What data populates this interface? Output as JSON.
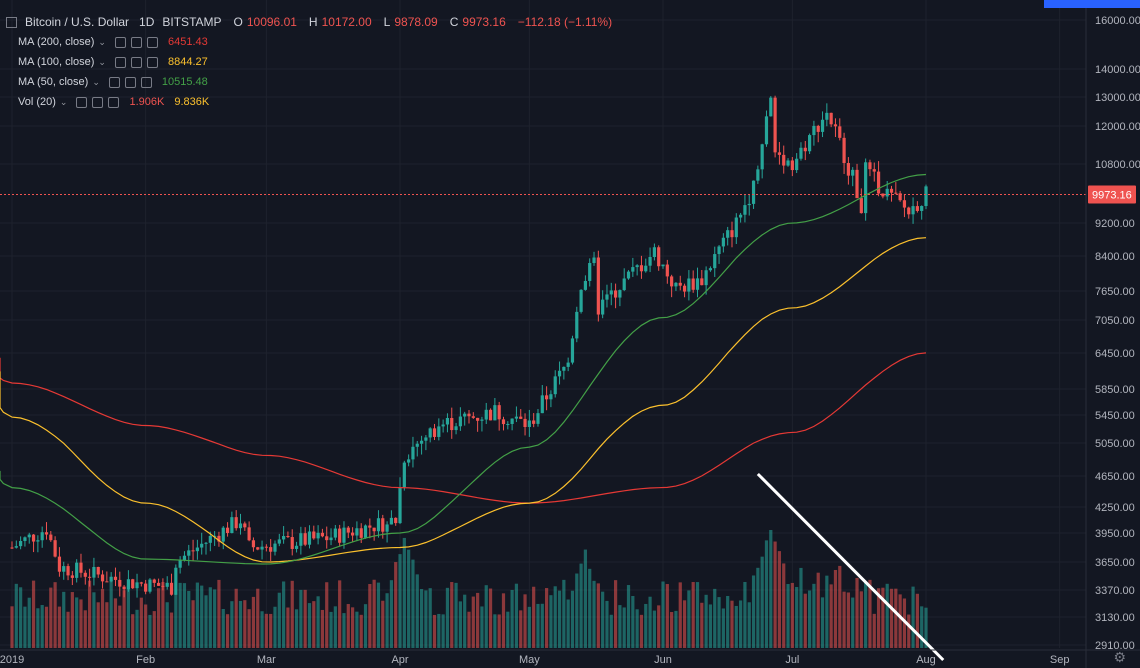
{
  "header": {
    "symbol": "Bitcoin / U.S. Dollar",
    "interval": "1D",
    "exchange": "BITSTAMP",
    "o_label": "O",
    "o": "10096.01",
    "h_label": "H",
    "h": "10172.00",
    "l_label": "L",
    "l": "9878.09",
    "c_label": "C",
    "c": "9973.16",
    "change": "−112.18 (−1.11%)"
  },
  "indicators": [
    {
      "label": "MA (200, close)",
      "value": "6451.43",
      "color": "#e53935"
    },
    {
      "label": "MA (100, close)",
      "value": "8844.27",
      "color": "#fbc02d"
    },
    {
      "label": "MA (50, close)",
      "value": "10515.48",
      "color": "#43a047"
    }
  ],
  "volume_indicator": {
    "label": "Vol (20)",
    "value1": "1.906K",
    "value2": "9.836K",
    "color1": "#ef5350",
    "color2": "#fbc02d"
  },
  "colors": {
    "up": "#26a69a",
    "down": "#ef5350",
    "bg": "#131722",
    "grid": "#1e222d"
  },
  "icons": [
    "chevron-down-icon",
    "eye-icon",
    "settings-icon",
    "close-icon",
    "gear-icon"
  ],
  "chart_data": {
    "type": "candlestick",
    "ylabel": "",
    "y_axis_labels": [
      "16000.00",
      "14000.00",
      "13000.00",
      "12000.00",
      "10800.00",
      "9973.16",
      "9200.00",
      "8400.00",
      "7650.00",
      "7050.00",
      "6450.00",
      "5850.00",
      "5450.00",
      "5050.00",
      "4650.00",
      "4250.00",
      "3950.00",
      "3650.00",
      "3370.00",
      "3130.00",
      "2910.00"
    ],
    "x_axis_labels": [
      "2019",
      "Feb",
      "Mar",
      "Apr",
      "May",
      "Jun",
      "Jul",
      "Aug",
      "Sep"
    ],
    "last_price": "9973.16",
    "price_anchors": [
      {
        "date": "2019-01-01",
        "close": 3800
      },
      {
        "date": "2019-01-09",
        "close": 4000
      },
      {
        "date": "2019-01-12",
        "close": 3600
      },
      {
        "date": "2019-01-28",
        "close": 3450
      },
      {
        "date": "2019-02-07",
        "close": 3400
      },
      {
        "date": "2019-02-08",
        "close": 3650
      },
      {
        "date": "2019-02-23",
        "close": 4100
      },
      {
        "date": "2019-02-25",
        "close": 3800
      },
      {
        "date": "2019-03-15",
        "close": 3900
      },
      {
        "date": "2019-03-31",
        "close": 4100
      },
      {
        "date": "2019-04-02",
        "close": 4900
      },
      {
        "date": "2019-04-10",
        "close": 5300
      },
      {
        "date": "2019-04-23",
        "close": 5500
      },
      {
        "date": "2019-05-01",
        "close": 5300
      },
      {
        "date": "2019-05-10",
        "close": 6300
      },
      {
        "date": "2019-05-13",
        "close": 7800
      },
      {
        "date": "2019-05-16",
        "close": 8200
      },
      {
        "date": "2019-05-17",
        "close": 7300
      },
      {
        "date": "2019-05-30",
        "close": 8500
      },
      {
        "date": "2019-06-04",
        "close": 7700
      },
      {
        "date": "2019-06-10",
        "close": 7900
      },
      {
        "date": "2019-06-18",
        "close": 9200
      },
      {
        "date": "2019-06-22",
        "close": 10200
      },
      {
        "date": "2019-06-26",
        "close": 12900
      },
      {
        "date": "2019-06-27",
        "close": 11200
      },
      {
        "date": "2019-07-01",
        "close": 10800
      },
      {
        "date": "2019-07-09",
        "close": 12500
      },
      {
        "date": "2019-07-17",
        "close": 9700
      },
      {
        "date": "2019-07-18",
        "close": 10600
      },
      {
        "date": "2019-07-23",
        "close": 10000
      },
      {
        "date": "2019-07-28",
        "close": 9500
      },
      {
        "date": "2019-08-01",
        "close": 9973
      }
    ],
    "moving_averages": [
      {
        "name": "MA (200, close)",
        "color": "#e53935",
        "points": [
          [
            "2019-01-01",
            5950
          ],
          [
            "2019-02-01",
            5300
          ],
          [
            "2019-03-01",
            4900
          ],
          [
            "2019-04-01",
            4500
          ],
          [
            "2019-05-01",
            4300
          ],
          [
            "2019-06-01",
            4500
          ],
          [
            "2019-07-01",
            5200
          ],
          [
            "2019-08-01",
            6451
          ]
        ]
      },
      {
        "name": "MA (100, close)",
        "color": "#fbc02d",
        "points": [
          [
            "2019-01-01",
            5420
          ],
          [
            "2019-02-01",
            4300
          ],
          [
            "2019-03-01",
            3650
          ],
          [
            "2019-04-01",
            3800
          ],
          [
            "2019-05-01",
            4300
          ],
          [
            "2019-06-01",
            5600
          ],
          [
            "2019-07-01",
            7300
          ],
          [
            "2019-08-01",
            8844
          ]
        ]
      },
      {
        "name": "MA (50, close)",
        "color": "#43a047",
        "points": [
          [
            "2019-01-01",
            4500
          ],
          [
            "2019-02-01",
            3680
          ],
          [
            "2019-03-01",
            3630
          ],
          [
            "2019-04-01",
            3950
          ],
          [
            "2019-05-01",
            5000
          ],
          [
            "2019-06-01",
            7100
          ],
          [
            "2019-07-01",
            9200
          ],
          [
            "2019-08-01",
            10515
          ]
        ]
      }
    ],
    "volume_peaks": [
      {
        "date": "2019-04-02",
        "relative": 0.9
      },
      {
        "date": "2019-05-14",
        "relative": 0.75
      },
      {
        "date": "2019-06-26",
        "relative": 1.0
      }
    ],
    "annotation": "trend line on volume from late June to August"
  }
}
